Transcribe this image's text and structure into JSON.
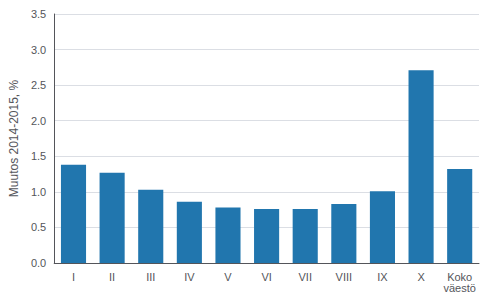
{
  "chart_data": {
    "type": "bar",
    "categories": [
      "I",
      "II",
      "III",
      "IV",
      "V",
      "VI",
      "VII",
      "VIII",
      "IX",
      "X",
      "Koko\nväestö"
    ],
    "values": [
      1.38,
      1.27,
      1.03,
      0.86,
      0.78,
      0.76,
      0.76,
      0.83,
      1.01,
      2.71,
      1.32
    ],
    "color": "#2176ae",
    "ylabel": "Muutos 2014-2015, %",
    "ylim": [
      0.0,
      3.5
    ],
    "yticks": [
      {
        "value": 0.0,
        "label": "0.0"
      },
      0.5,
      {
        "value": 1.0,
        "label": "1.0"
      },
      1.5,
      {
        "value": 2.0,
        "label": "2.0"
      },
      2.5,
      {
        "value": 3.0,
        "label": "3.0"
      },
      3.5
    ],
    "grid": true
  }
}
